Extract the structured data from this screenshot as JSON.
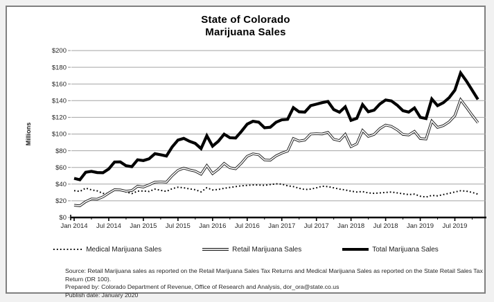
{
  "panel": {
    "background": "#ffffff",
    "border_color": "#7f7f7f",
    "page_background": "#f1f1f1"
  },
  "title": {
    "line1": "State of Colorado",
    "line2": "Marijuana Sales"
  },
  "chart_data": {
    "type": "line",
    "title": "State of Colorado Marijuana Sales",
    "xlabel": "",
    "ylabel": "Millions",
    "ylim": [
      0,
      200
    ],
    "ytick_step": 20,
    "y_tick_labels": [
      "$0",
      "$20",
      "$40",
      "$60",
      "$80",
      "$100",
      "$120",
      "$140",
      "$160",
      "$180",
      "$200"
    ],
    "x_start": "Jan 2014",
    "x_interval": "monthly",
    "x_end": "Nov 2019",
    "x_tick_labels": [
      "Jan 2014",
      "Jul 2014",
      "Jan 2015",
      "Jul 2015",
      "Jan 2016",
      "Jul 2016",
      "Jan 2017",
      "Jul 2017",
      "Jan 2018",
      "Jul 2018",
      "Jan 2019",
      "Jul 2019"
    ],
    "grid": "horizontal",
    "legend_position": "bottom",
    "units": "millions of dollars",
    "series": [
      {
        "name": "Medical Marijuana Sales",
        "style": "dotted",
        "color": "#000000",
        "values": [
          32.2,
          31.2,
          35.2,
          33.1,
          31.9,
          28.9,
          28.9,
          33.1,
          33.6,
          30.6,
          28.6,
          31.6,
          31.8,
          31.2,
          34.0,
          32.5,
          31.3,
          34.5,
          36.3,
          35.6,
          34.3,
          33.3,
          30.7,
          35.7,
          33.0,
          33.5,
          35.0,
          36.0,
          37.0,
          38.0,
          38.5,
          39.0,
          39.0,
          38.5,
          39.5,
          40.3,
          40.0,
          38.0,
          37.0,
          35.0,
          33.5,
          34.0,
          35.5,
          37.5,
          37.0,
          35.5,
          34.0,
          33.0,
          31.5,
          30.5,
          31.0,
          29.5,
          29.0,
          29.5,
          30.0,
          30.5,
          29.5,
          28.5,
          27.5,
          28.0,
          25.5,
          24.5,
          26.5,
          26.0,
          27.5,
          29.0,
          30.5,
          32.0,
          31.5,
          30.0,
          28.0
        ]
      },
      {
        "name": "Retail Marijuana Sales",
        "style": "double",
        "color": "#000000",
        "values": [
          14.7,
          14.0,
          19.0,
          22.2,
          22.0,
          24.7,
          29.3,
          33.4,
          33.0,
          31.5,
          32.3,
          37.5,
          36.4,
          39.2,
          42.4,
          42.7,
          42.4,
          50.1,
          56.5,
          59.2,
          57.0,
          55.5,
          51.9,
          62.2,
          52.5,
          57.8,
          64.8,
          59.6,
          58.3,
          65.2,
          73.4,
          76.3,
          75.2,
          69.0,
          68.6,
          73.8,
          77.1,
          79.6,
          94.6,
          91.6,
          92.8,
          100.0,
          100.3,
          100.1,
          102.0,
          93.8,
          92.1,
          99.6,
          84.9,
          88.3,
          104.3,
          97.2,
          99.6,
          106.5,
          110.8,
          109.2,
          105.0,
          99.5,
          98.8,
          103.2,
          94.5,
          94.0,
          115.5,
          108.0,
          110.0,
          114.5,
          122.0,
          141.2,
          132.0,
          122.5,
          113.5
        ]
      },
      {
        "name": "Total Marijuana Sales",
        "style": "thick",
        "color": "#000000",
        "values": [
          46.9,
          45.2,
          54.2,
          55.3,
          53.9,
          53.6,
          58.2,
          66.5,
          66.6,
          62.1,
          60.9,
          69.1,
          68.2,
          70.4,
          76.4,
          75.2,
          73.7,
          84.6,
          92.8,
          94.8,
          91.3,
          88.8,
          82.6,
          97.9,
          85.5,
          91.3,
          99.8,
          95.6,
          95.3,
          103.2,
          111.9,
          115.3,
          114.2,
          107.5,
          108.1,
          114.1,
          117.1,
          117.6,
          131.6,
          126.6,
          126.3,
          134.0,
          135.8,
          137.6,
          139.0,
          129.3,
          126.1,
          132.6,
          116.4,
          118.8,
          135.3,
          126.7,
          128.6,
          136.0,
          140.8,
          139.7,
          134.5,
          128.0,
          126.3,
          131.2,
          120.0,
          118.5,
          142.0,
          134.0,
          137.5,
          143.5,
          152.5,
          173.2,
          163.5,
          152.5,
          141.5
        ]
      }
    ]
  },
  "footer": {
    "source": "Source: Retail Marijuana sales as reported on the Retail Marijuana Sales Tax Returns and Medical Marijuana Sales as reported on the State Retail Sales Tax Return (DR 100).",
    "prepared_by": "Prepared by: Colorado Department of Revenue, Office of Research and Analysis, dor_ora@state.co.us",
    "publish_date": "Publish date: January 2020"
  }
}
